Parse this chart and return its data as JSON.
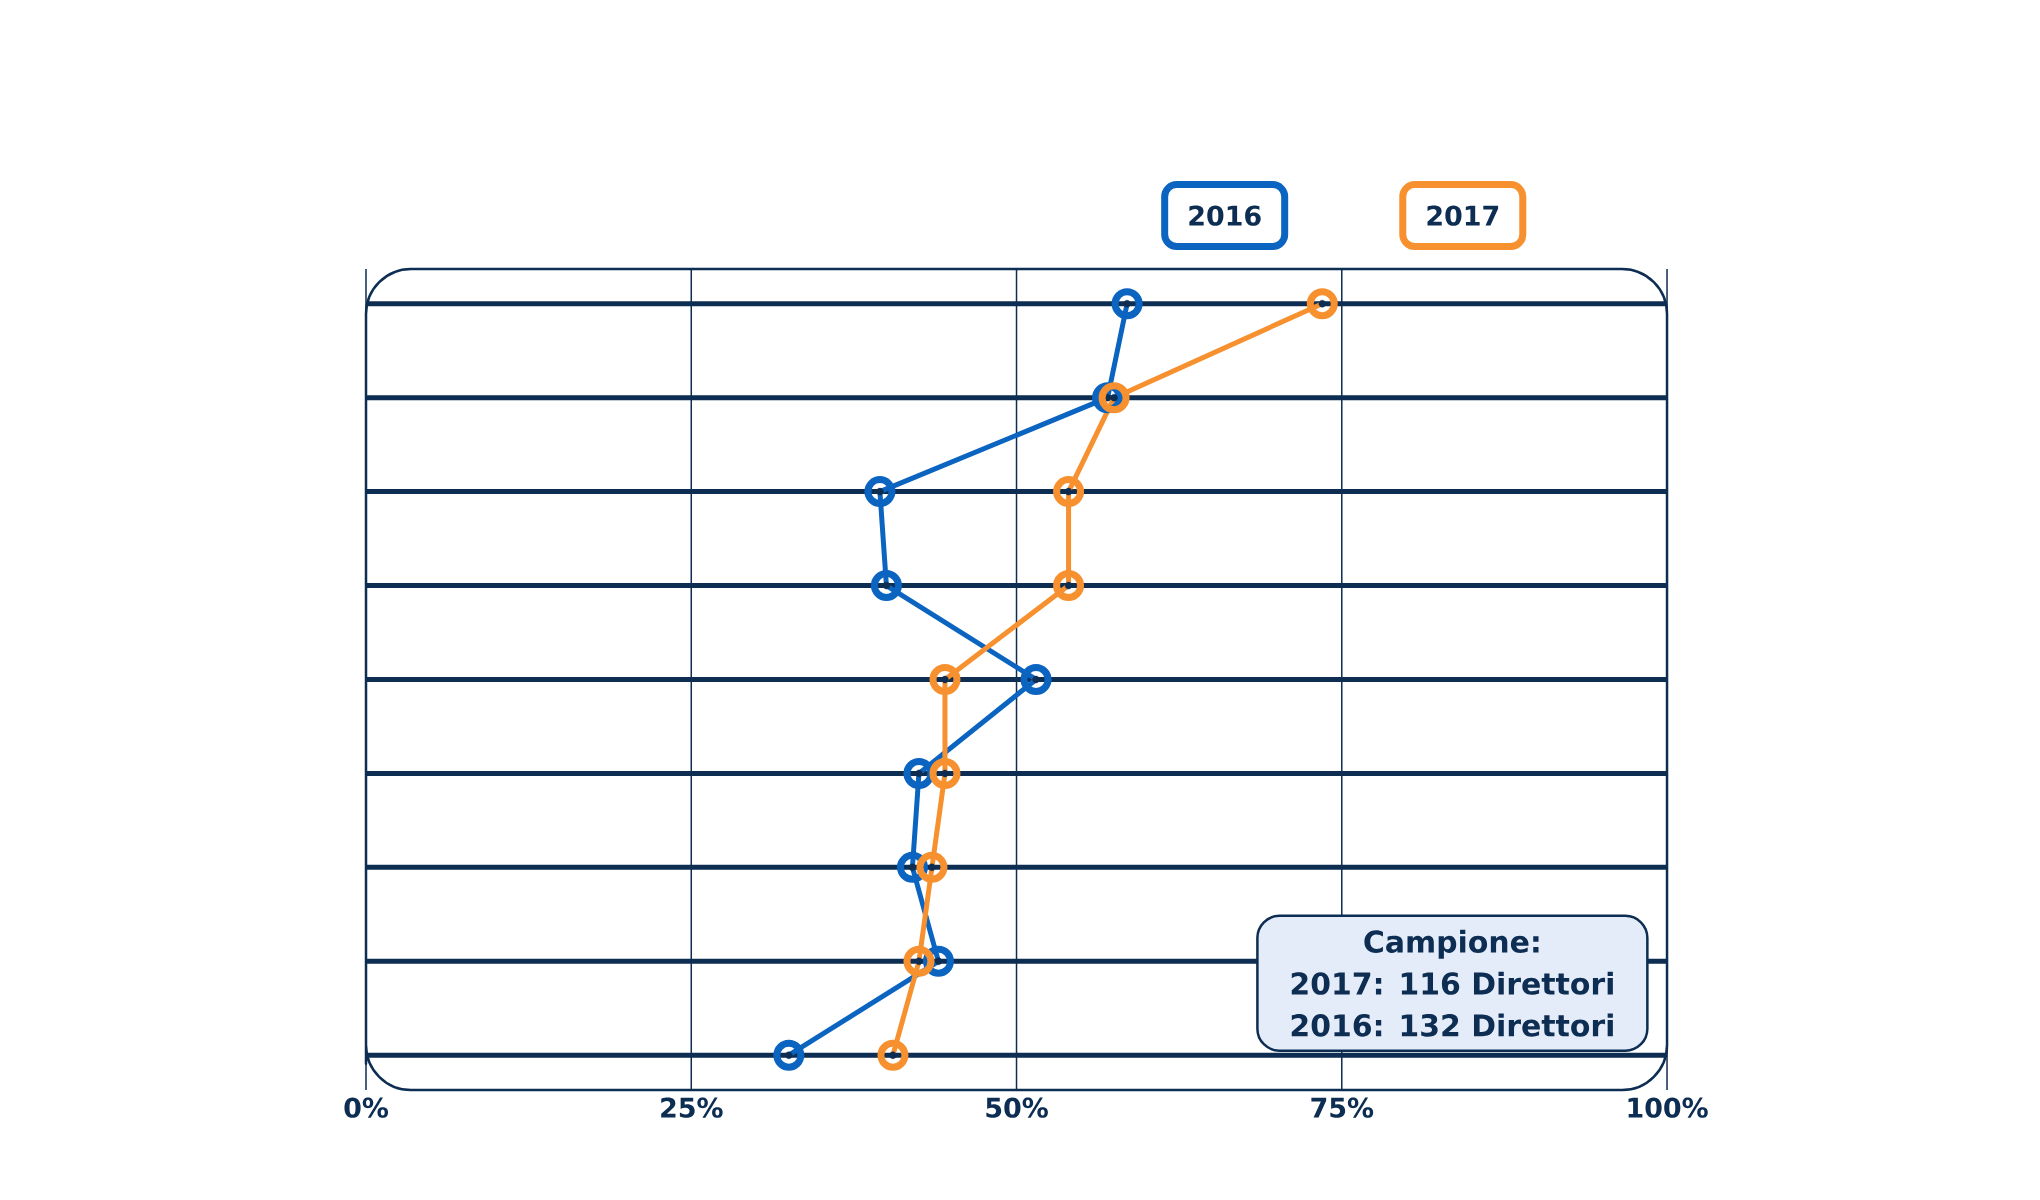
{
  "chart_data": {
    "type": "line",
    "orientation": "horizontal",
    "categories": [
      null,
      null,
      null,
      null,
      null,
      null,
      null,
      null,
      null
    ],
    "series": [
      {
        "name": "2016",
        "color": "#0a64c0",
        "values": [
          58.5,
          57,
          39.5,
          40,
          51.5,
          42.5,
          42,
          44,
          32.5
        ]
      },
      {
        "name": "2017",
        "color": "#f7912f",
        "values": [
          73.5,
          57.5,
          54,
          54,
          44.5,
          44.5,
          43.5,
          42.5,
          40.5
        ]
      }
    ],
    "xlim": [
      0,
      100
    ],
    "xticks": [
      {
        "value": 0,
        "label": "0%"
      },
      {
        "value": 25,
        "label": "25%"
      },
      {
        "value": 50,
        "label": "50%"
      },
      {
        "value": 75,
        "label": "75%"
      },
      {
        "value": 100,
        "label": "100%"
      }
    ],
    "tick_labels": "x",
    "grid": true,
    "legend": "top right",
    "marker": "circle",
    "annotations": [
      "Campione:",
      "2017: 116 Direttori",
      "2016: 132 Direttori"
    ]
  }
}
